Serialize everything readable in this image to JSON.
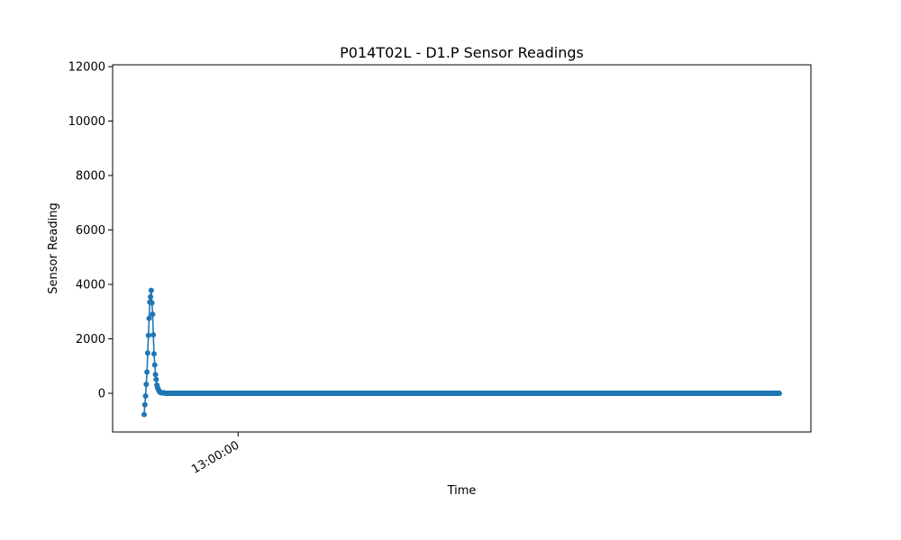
{
  "chart_data": {
    "type": "line",
    "title": "P014T02L - D1.P Sensor Readings",
    "xlabel": "Time",
    "ylabel": "Sensor Reading",
    "ylim": [
      -1400,
      12000
    ],
    "yticks": [
      0,
      2000,
      4000,
      6000,
      8000,
      10000,
      12000
    ],
    "xticks": [
      {
        "index": 133,
        "label": "13:00:00"
      }
    ],
    "grid": false,
    "legend": "none",
    "series": [
      {
        "color": "#1f77b4",
        "marker": "circle",
        "values": [
          -780,
          -420,
          -100,
          330,
          780,
          1480,
          2130,
          2750,
          3350,
          3540,
          3780,
          3320,
          2900,
          2150,
          1450,
          1040,
          690,
          510,
          300,
          210,
          140,
          90,
          50,
          30,
          20,
          20,
          20,
          20,
          20,
          10,
          0,
          0,
          0,
          0,
          0,
          0,
          0,
          0,
          0,
          0,
          0,
          0,
          0,
          0,
          0,
          0,
          0,
          0,
          0,
          0,
          0,
          0,
          0,
          0,
          0,
          0,
          0,
          0,
          0,
          0,
          0,
          0,
          0,
          0,
          0,
          0,
          0,
          0,
          0,
          0,
          0,
          0,
          0,
          0,
          0,
          0,
          0,
          0,
          0,
          0,
          0,
          0,
          0,
          0,
          0,
          0,
          0,
          0,
          0,
          0,
          0,
          0,
          0,
          0,
          0,
          0,
          0,
          0,
          0,
          0,
          0,
          0,
          0,
          0,
          0,
          0,
          0,
          0,
          0,
          0,
          0,
          0,
          0,
          0,
          0,
          0,
          0,
          0,
          0,
          0,
          0,
          0,
          0,
          0,
          0,
          0,
          0,
          0,
          0,
          0,
          0,
          0,
          0,
          0,
          0,
          0,
          0,
          0,
          0,
          0,
          0,
          0,
          0,
          0,
          0,
          0,
          0,
          0,
          0,
          0,
          0,
          0,
          0,
          0,
          0,
          0,
          0,
          0,
          0,
          0,
          0,
          0,
          0,
          0,
          0,
          0,
          0,
          0,
          0,
          0,
          0,
          0,
          0,
          0,
          0,
          0,
          0,
          0,
          0,
          0,
          0,
          0,
          0,
          0,
          0,
          0,
          0,
          0,
          0,
          0,
          0,
          0,
          0,
          0,
          0,
          0,
          0,
          0,
          0,
          0,
          0,
          0,
          0,
          0,
          0,
          0,
          0,
          0,
          0,
          0,
          0,
          0,
          0,
          0,
          0,
          0,
          0,
          0,
          0,
          0,
          0,
          0,
          0,
          0,
          0,
          0,
          0,
          0,
          0,
          0,
          0,
          0,
          0,
          0,
          0,
          0,
          0,
          0,
          0,
          0,
          0,
          0,
          0,
          0,
          0,
          0,
          0,
          0,
          0,
          0,
          0,
          0,
          0,
          0,
          0,
          0,
          0,
          0,
          0,
          0,
          0,
          0,
          0,
          0,
          0,
          0,
          0,
          0,
          0,
          0,
          0,
          0,
          0,
          0,
          0,
          0,
          0,
          0,
          0,
          0,
          0,
          0,
          0,
          0,
          0,
          0,
          0,
          0,
          0,
          0,
          0,
          0,
          0,
          0,
          0,
          0,
          0,
          0,
          0,
          0,
          0,
          0,
          0,
          0,
          0,
          0,
          0,
          0,
          0,
          0,
          0,
          0,
          0,
          0,
          0,
          0,
          0,
          0,
          0,
          0,
          0,
          0,
          0,
          0,
          0,
          0,
          0,
          0,
          0,
          0,
          0,
          0,
          0,
          0,
          0,
          0,
          0,
          0,
          0,
          0,
          0,
          0,
          0,
          0,
          0,
          0,
          0,
          0,
          0,
          0,
          0,
          0,
          0,
          0,
          0,
          0,
          0,
          0,
          0,
          0,
          0,
          0,
          0,
          0,
          0,
          0,
          0,
          0,
          0,
          0,
          0,
          0,
          0,
          0,
          0,
          0,
          0,
          0,
          0,
          0,
          0,
          0,
          0,
          0,
          0,
          0,
          0,
          0,
          0,
          0,
          0,
          0,
          0,
          0,
          0,
          0,
          0,
          0,
          0,
          0,
          0,
          0,
          0,
          0,
          0,
          0,
          0,
          0,
          0,
          0,
          0,
          0,
          0,
          0,
          0,
          0,
          0,
          0,
          0,
          0,
          0,
          0,
          0,
          0,
          0,
          0,
          0,
          0,
          0,
          0,
          0,
          0,
          0,
          0,
          0,
          0,
          0,
          0,
          0,
          0,
          0,
          0,
          0,
          0,
          0,
          0,
          0,
          0,
          0,
          0,
          0,
          0,
          0,
          0,
          0,
          0,
          0,
          0,
          0,
          0,
          0,
          0,
          0,
          0,
          0,
          0,
          0,
          0,
          0,
          0,
          0,
          0,
          0,
          0,
          0,
          0,
          0,
          0,
          0,
          0,
          0,
          0,
          0,
          0,
          0,
          0,
          0,
          0,
          0,
          0,
          0,
          0,
          0,
          0,
          0,
          0,
          0,
          0,
          0,
          0,
          0,
          0,
          0,
          0,
          0,
          0,
          0,
          0,
          0,
          0,
          0,
          0,
          0,
          0,
          0,
          0,
          0,
          0,
          0,
          0,
          0,
          0,
          0,
          0,
          0,
          0,
          0,
          0,
          0,
          0,
          0,
          0,
          0,
          0,
          0,
          0,
          0,
          0,
          0,
          0,
          0,
          0,
          0,
          0,
          0,
          0,
          0,
          0,
          0,
          0,
          0,
          0,
          0,
          0,
          0,
          0,
          0,
          0,
          0,
          0,
          0,
          0,
          0,
          0,
          0,
          0,
          0,
          0,
          0,
          0,
          0,
          0,
          0,
          0,
          0,
          0,
          0,
          0,
          0,
          0,
          0,
          0,
          0,
          0,
          0,
          0,
          0,
          0,
          0,
          0,
          0,
          0,
          0,
          0,
          0,
          0,
          0,
          0,
          0,
          0,
          0,
          0,
          0,
          0,
          0,
          0,
          0,
          0,
          0,
          0,
          0,
          0,
          0,
          0,
          0,
          0,
          0,
          0,
          0,
          0,
          0,
          0,
          0,
          0,
          0,
          0,
          0,
          0,
          0,
          0,
          0,
          0,
          0,
          0,
          0,
          0,
          0,
          0,
          0,
          0,
          0,
          0,
          0,
          0,
          0,
          0,
          0,
          0,
          0,
          0,
          0,
          0,
          0,
          0,
          0,
          0,
          0,
          0,
          0,
          0,
          0,
          0,
          0,
          0,
          0,
          0,
          0,
          0,
          0,
          0,
          0,
          0,
          0,
          0,
          0,
          0,
          0,
          0,
          0,
          0,
          0,
          0,
          0,
          0,
          0,
          0,
          0,
          0,
          0,
          0,
          0,
          0,
          0,
          0,
          0,
          0,
          0,
          0,
          0,
          0,
          0,
          0,
          0,
          0,
          0,
          0,
          0,
          0,
          0,
          0,
          0,
          0,
          0,
          0,
          0,
          0,
          0,
          0,
          0,
          0,
          0,
          0,
          0,
          0,
          0,
          0,
          0,
          0,
          0,
          0,
          0,
          0,
          0,
          0,
          0,
          0,
          0,
          0,
          0,
          0,
          0,
          0,
          0,
          0,
          0,
          0,
          0,
          0,
          0,
          0,
          0,
          0,
          0,
          0,
          0,
          0,
          0,
          0,
          0,
          0,
          0,
          0,
          0,
          0,
          0,
          0,
          0,
          0,
          0,
          0,
          0,
          0,
          0,
          0,
          0,
          0,
          0,
          0,
          0,
          0,
          0,
          0,
          0,
          0,
          0,
          0,
          0,
          0,
          0,
          0,
          0,
          0,
          0,
          0,
          0,
          0,
          0,
          0,
          0,
          0,
          0,
          0,
          0,
          0,
          0,
          0,
          0,
          0,
          0,
          0,
          0,
          0,
          0,
          0,
          0,
          0,
          0,
          0,
          0,
          0,
          0,
          0,
          0,
          0,
          0,
          0,
          0,
          0,
          0,
          0,
          0,
          0,
          0,
          0,
          0,
          0,
          0,
          0,
          0,
          0,
          0,
          0,
          0,
          0,
          0,
          0,
          0,
          0,
          0,
          0,
          0,
          0,
          0,
          0,
          0,
          0,
          0,
          0,
          0,
          0,
          0,
          0,
          0,
          0,
          0,
          0,
          0,
          0,
          0,
          0,
          0,
          0,
          0,
          0,
          0,
          0,
          0,
          0,
          0,
          0,
          0,
          0,
          0,
          0,
          0,
          0,
          0,
          0,
          0,
          0,
          0,
          0,
          0,
          0,
          0,
          0,
          0,
          0,
          0,
          0
        ]
      }
    ]
  }
}
